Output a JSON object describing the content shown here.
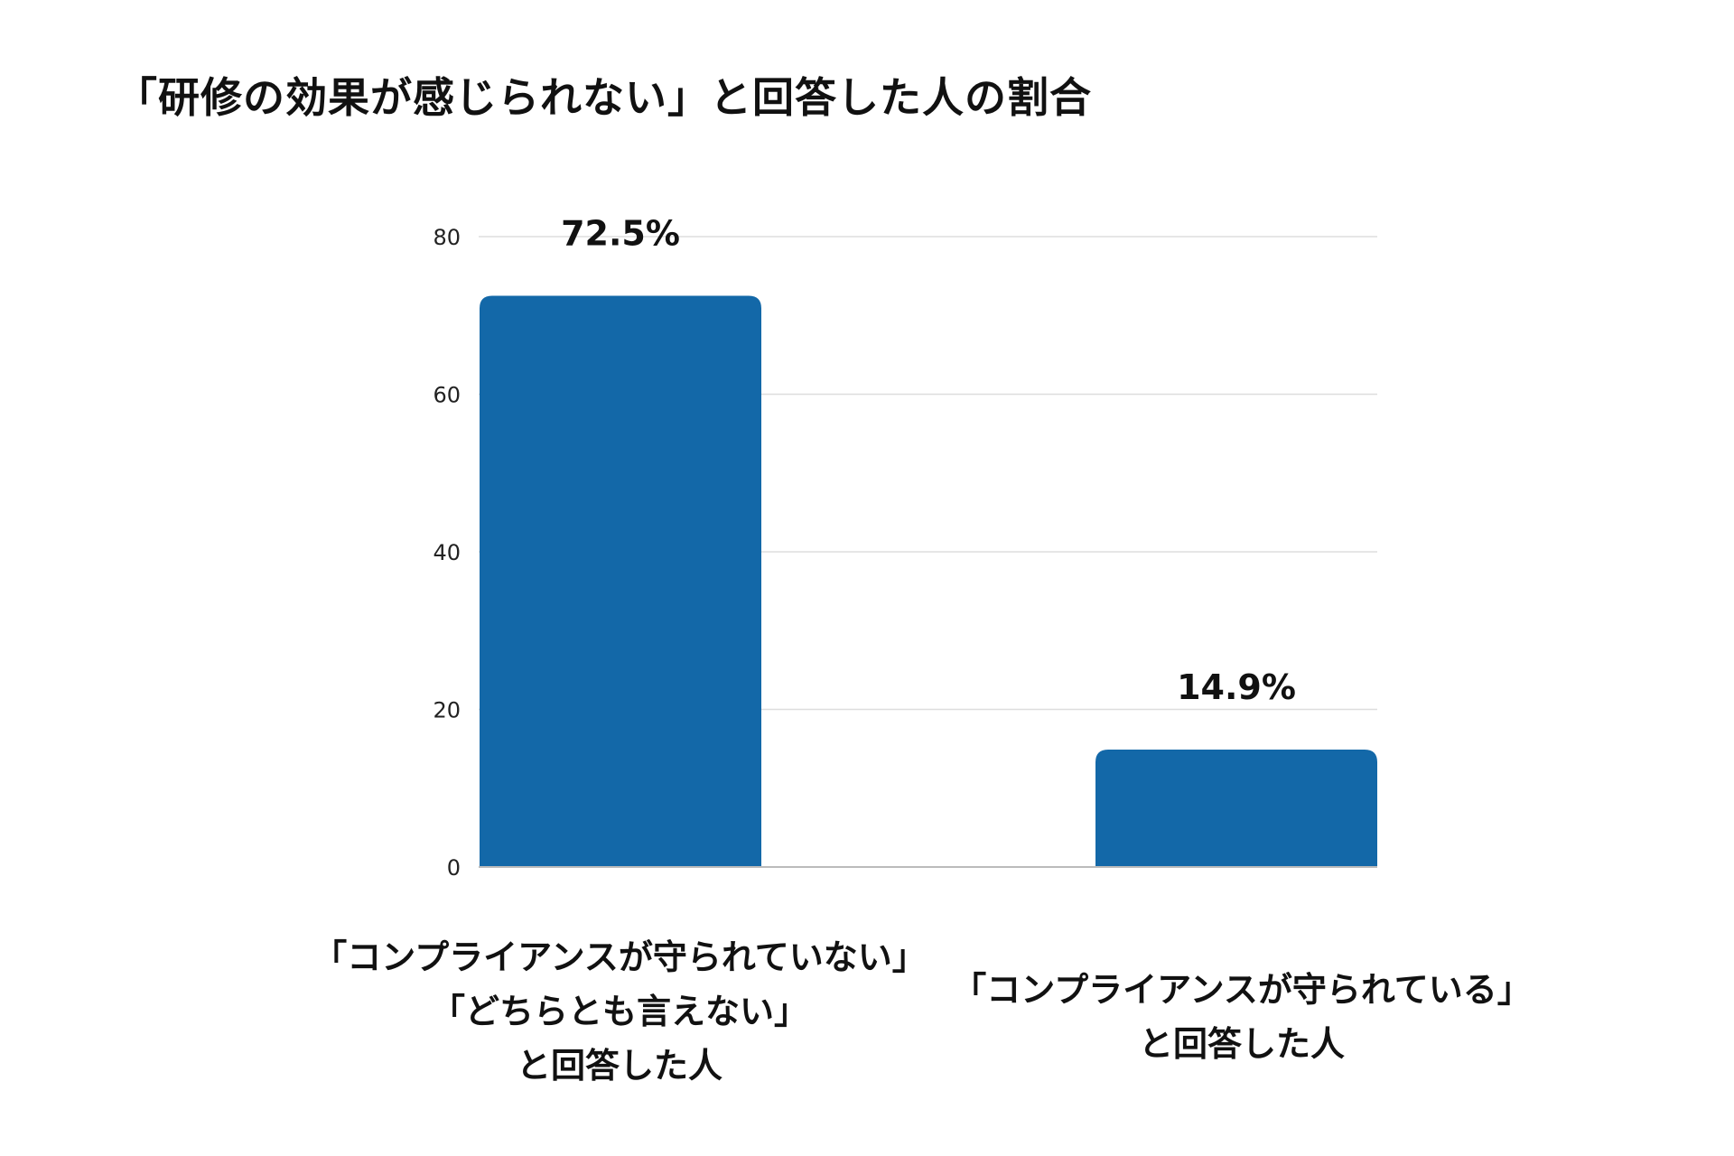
{
  "chart_data": {
    "type": "bar",
    "title": "「研修の効果が感じられない」と回答した人の割合",
    "categories": [
      [
        "「コンプライアンスが守られていない」",
        "「どちらとも言えない」",
        "と回答した人"
      ],
      [
        "「コンプライアンスが守られている」",
        "と回答した人"
      ]
    ],
    "values": [
      72.5,
      14.9
    ],
    "data_labels": [
      "72.5%",
      "14.9%"
    ],
    "yticks": [
      "0",
      "20",
      "40",
      "60",
      "80"
    ],
    "ylim": [
      0,
      80
    ],
    "xlabel": "",
    "ylabel": "",
    "grid": true,
    "legend": "none",
    "bar_color": "#1368A8",
    "grid_color": "#DDDDDD",
    "axis_color": "#BBBBBB"
  }
}
